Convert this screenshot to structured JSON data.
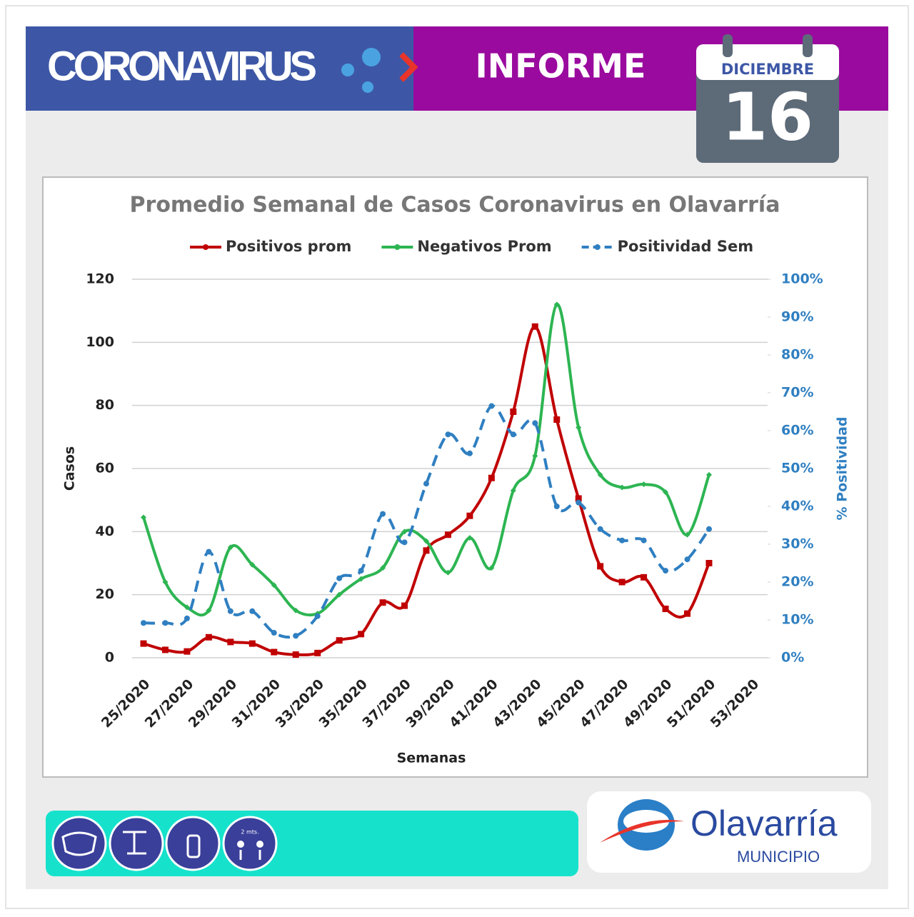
{
  "header": {
    "title": "CORONAVIRUS",
    "report": "INFORME"
  },
  "calendar": {
    "month": "DICIEMBRE",
    "day": "16"
  },
  "icons": {
    "distance": "2 mts."
  },
  "logo": {
    "name": "Olavarría",
    "sub": "MUNICIPIO"
  },
  "chart_data": {
    "type": "line",
    "title": "Promedio Semanal de Casos Coronavirus en Olavarría",
    "x_label": "Semanas",
    "y_label": "Casos",
    "y2_label": "% Positividad",
    "legend": "top",
    "grid": true,
    "categories": [
      "25/2020",
      null,
      "27/2020",
      null,
      "29/2020",
      null,
      "31/2020",
      null,
      "33/2020",
      null,
      "35/2020",
      null,
      "37/2020",
      null,
      "39/2020",
      null,
      "41/2020",
      null,
      "43/2020",
      null,
      "45/2020",
      null,
      "47/2020",
      null,
      "49/2020",
      null,
      "51/2020",
      null,
      "53/2020"
    ],
    "ylim": [
      0,
      120
    ],
    "yticks": [
      0,
      20,
      40,
      60,
      80,
      100,
      120
    ],
    "y2lim": [
      0,
      100
    ],
    "y2ticks": [
      {
        "value": 0,
        "label": "0%"
      },
      {
        "value": 10,
        "label": "10%"
      },
      {
        "value": 20,
        "label": "20%"
      },
      {
        "value": 30,
        "label": "30%"
      },
      {
        "value": 40,
        "label": "40%"
      },
      {
        "value": 50,
        "label": "50%"
      },
      {
        "value": 60,
        "label": "60%"
      },
      {
        "value": 70,
        "label": "70%"
      },
      {
        "value": 80,
        "label": "80%"
      },
      {
        "value": 90,
        "label": "90%"
      },
      {
        "value": 100,
        "label": "100%"
      }
    ],
    "series": [
      {
        "name": "Positivos prom",
        "color": "#c00000",
        "marker": "square",
        "values": [
          4.5,
          2.5,
          2,
          6.5,
          5,
          4.5,
          1.8,
          1,
          1.5,
          5.5,
          7.5,
          17.5,
          16.5,
          34,
          39,
          45,
          57,
          78,
          105,
          75.5,
          50.5,
          29,
          24,
          25.5,
          15.5,
          14,
          30,
          null,
          null
        ]
      },
      {
        "name": "Negativos Prom",
        "color": "#2db552",
        "marker": "diamond",
        "values": [
          44.5,
          24,
          16,
          15,
          35,
          29.5,
          23,
          15,
          14,
          20,
          25,
          28.5,
          40,
          37,
          27,
          38,
          28.5,
          53,
          64,
          112,
          73,
          58,
          54,
          55,
          52.5,
          39,
          58,
          null,
          null
        ]
      },
      {
        "name": "Positividad Sem",
        "color": "#2f7fc1",
        "marker": "circle",
        "dashed": true,
        "axis": "y2",
        "values": [
          9.2,
          9.2,
          10.4,
          28,
          12.3,
          12.3,
          6.6,
          5.8,
          11,
          21,
          23,
          38,
          30.5,
          46,
          59,
          54,
          66.5,
          59,
          62,
          40,
          41,
          34,
          31,
          31,
          23,
          26,
          34,
          null,
          null
        ]
      }
    ]
  }
}
